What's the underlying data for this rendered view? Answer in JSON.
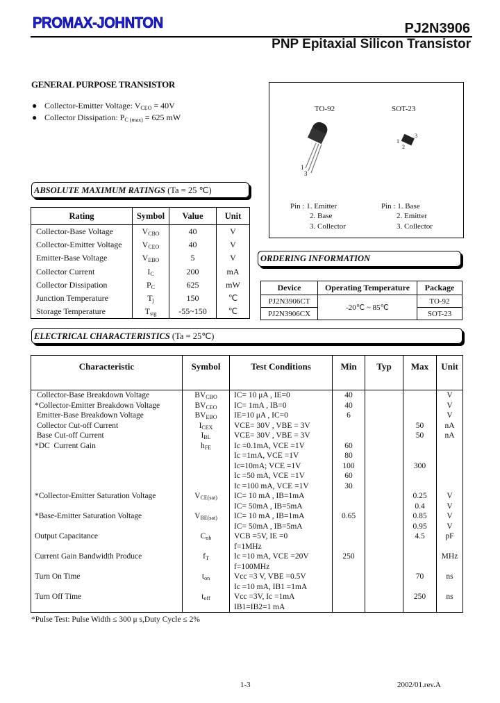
{
  "header": {
    "logo": "PROMAX-JOHNTON",
    "part_number": "PJ2N3906",
    "subtitle": "PNP Epitaxial Silicon Transistor"
  },
  "general": {
    "title": "GENERAL PURPOSE TRANSISTOR",
    "bullets": [
      {
        "pre": "Collector-Emitter Voltage: V",
        "sub": "CEO",
        "post": " = 40V"
      },
      {
        "pre": "Collector Dissipation: P",
        "sub": "C (max)",
        "post": " = 625 mW"
      }
    ]
  },
  "packages": {
    "to92": {
      "name": "TO-92",
      "pin1": "1",
      "pin3": "3",
      "pins": [
        "Pin : 1. Emitter",
        "2. Base",
        "3. Collector"
      ]
    },
    "sot23": {
      "name": "SOT-23",
      "pin1": "1",
      "pin2": "2",
      "pin3": "3",
      "pins": [
        "Pin : 1. Base",
        "2. Emitter",
        "3. Collector"
      ]
    }
  },
  "abs_max": {
    "title": "ABSOLUTE MAXIMUM RATINGS",
    "cond": "(Ta = 25 ℃)",
    "headers": [
      "Rating",
      "Symbol",
      "Value",
      "Unit"
    ],
    "rows": [
      {
        "rating": "Collector-Base Voltage",
        "sym": "V",
        "sub": "CBO",
        "value": "40",
        "unit": "V"
      },
      {
        "rating": "Collector-Emitter Voltage",
        "sym": "V",
        "sub": "CEO",
        "value": "40",
        "unit": "V"
      },
      {
        "rating": "Emitter-Base Voltage",
        "sym": "V",
        "sub": "EBO",
        "value": "5",
        "unit": "V"
      },
      {
        "rating": "Collector Current",
        "sym": "I",
        "sub": "C",
        "value": "200",
        "unit": "mA"
      },
      {
        "rating": "Collector Dissipation",
        "sym": "P",
        "sub": "C",
        "value": "625",
        "unit": "mW"
      },
      {
        "rating": "Junction Temperature",
        "sym": "T",
        "sub": "j",
        "value": "150",
        "unit": "℃"
      },
      {
        "rating": "Storage Temperature",
        "sym": "T",
        "sub": "stg",
        "value": "-55~150",
        "unit": "℃"
      }
    ]
  },
  "ordering": {
    "title": "ORDERING INFORMATION",
    "headers": [
      "Device",
      "Operating Temperature",
      "Package"
    ],
    "temp": "-20℃ ~ 85℃",
    "rows": [
      {
        "device": "PJ2N3906CT",
        "package": "TO-92"
      },
      {
        "device": "PJ2N3906CX",
        "package": "SOT-23"
      }
    ]
  },
  "electrical": {
    "title": "ELECTRICAL CHARACTERISTICS",
    "cond": "(Ta = 25℃)",
    "headers": [
      "Characteristic",
      "Symbol",
      "Test Conditions",
      "Min",
      "Typ",
      "Max",
      "Unit"
    ],
    "rows": [
      {
        "name": " Collector-Base Breakdown Voltage",
        "sym": "BV",
        "sub": "CBO",
        "cond": [
          "IC= 10 μA , IE=0"
        ],
        "min": [
          "40"
        ],
        "max": [
          ""
        ],
        "unit": [
          "V"
        ]
      },
      {
        "name": "*Collector-Emitter Breakdown Voltage",
        "sym": "BV",
        "sub": "CEO",
        "cond": [
          "IC= 1mA , IB=0"
        ],
        "min": [
          "40"
        ],
        "max": [
          ""
        ],
        "unit": [
          "V"
        ]
      },
      {
        "name": " Emitter-Base Breakdown Voltage",
        "sym": "BV",
        "sub": "EBO",
        "cond": [
          "IE=10 μA , IC=0"
        ],
        "min": [
          "6"
        ],
        "max": [
          ""
        ],
        "unit": [
          "V"
        ]
      },
      {
        "name": " Collector Cut-off Current",
        "sym": "I",
        "sub": "CEX",
        "cond": [
          "VCE= 30V , VBE = 3V"
        ],
        "min": [
          ""
        ],
        "max": [
          "50"
        ],
        "unit": [
          "nA"
        ]
      },
      {
        "name": " Base Cut-off Current",
        "sym": "I",
        "sub": "BL",
        "cond": [
          "VCE= 30V , VBE = 3V"
        ],
        "min": [
          ""
        ],
        "max": [
          "50"
        ],
        "unit": [
          "nA"
        ]
      },
      {
        "name": "*DC  Current Gain",
        "sym": "h",
        "sub": "FE",
        "cond": [
          "Ic =0.1mA, VCE =1V",
          "Ic =1mA, VCE =1V",
          "Ic=10mA; VCE =1V",
          "Ic =50 mA, VCE =1V",
          "Ic =100 mA, VCE =1V"
        ],
        "min": [
          "60",
          "80",
          "100",
          "60",
          "30"
        ],
        "max": [
          "",
          "",
          "300",
          "",
          ""
        ],
        "unit": [
          "",
          "",
          "",
          "",
          ""
        ]
      },
      {
        "name": "*Collector-Emitter Saturation Voltage",
        "sym": "V",
        "sub": "CE(sat)",
        "cond": [
          "IC= 10 mA , IB=1mA",
          "IC= 50mA , IB=5mA"
        ],
        "min": [
          "",
          ""
        ],
        "max": [
          "0.25",
          "0.4"
        ],
        "unit": [
          "V",
          "V"
        ]
      },
      {
        "name": "*Base-Emitter Saturation Voltage",
        "sym": "V",
        "sub": "BE(sat)",
        "cond": [
          "IC= 10 mA , IB=1mA",
          "IC= 50mA , IB=5mA"
        ],
        "min": [
          "0.65",
          ""
        ],
        "max": [
          "0.85",
          "0.95"
        ],
        "unit": [
          "V",
          "V"
        ]
      },
      {
        "name": "Output Capacitance",
        "sym": "C",
        "sub": "ob",
        "cond": [
          "VCB =5V, IE =0",
          "f=1MHz"
        ],
        "min": [
          "",
          ""
        ],
        "max": [
          "4.5",
          ""
        ],
        "unit": [
          "pF",
          ""
        ]
      },
      {
        "name": "Current Gain Bandwidth Produce",
        "sym": "f",
        "sub": "T",
        "cond": [
          "Ic =10 mA, VCE =20V",
          "f=100MHz"
        ],
        "min": [
          "250",
          ""
        ],
        "max": [
          "",
          ""
        ],
        "unit": [
          "MHz",
          ""
        ]
      },
      {
        "name": "Turn On Time",
        "sym": "t",
        "sub": "on",
        "cond": [
          "Vcc =3 V, VBE =0.5V",
          "Ic =10 mA, IB1 =1mA"
        ],
        "min": [
          "",
          ""
        ],
        "max": [
          "70",
          ""
        ],
        "unit": [
          "ns",
          ""
        ]
      },
      {
        "name": "Turn Off Time",
        "sym": "t",
        "sub": "off",
        "cond": [
          "Vcc =3V, Ic =1mA",
          "IB1=IB2=1 mA"
        ],
        "min": [
          "",
          ""
        ],
        "max": [
          "250",
          ""
        ],
        "unit": [
          "ns",
          ""
        ]
      }
    ],
    "footnote": "*Pulse Test: Pulse Width ≤ 300 μ s,Duty Cycle ≤ 2%"
  },
  "footer": {
    "page": "1-3",
    "revision": "2002/01.rev.A"
  }
}
